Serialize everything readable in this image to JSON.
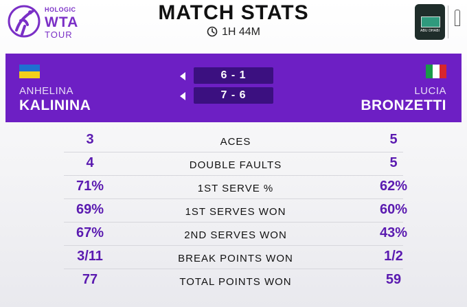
{
  "branding": {
    "sponsor": "HOLOGIC",
    "tour_line1": "WTA",
    "tour_line2": "TOUR",
    "accent_color": "#6d1fc4"
  },
  "header": {
    "title": "MATCH STATS",
    "duration": "1H 44M",
    "clock_icon": "clock-icon"
  },
  "players": {
    "left": {
      "first": "ANHELINA",
      "last": "KALININA",
      "flag": "ukraine-flag-icon"
    },
    "right": {
      "first": "LUCIA",
      "last": "BRONZETTI",
      "flag": "italy-flag-icon"
    }
  },
  "sets": [
    {
      "score": "6 - 1"
    },
    {
      "score": "7 - 6"
    }
  ],
  "stats": [
    {
      "label": "ACES",
      "left": "3",
      "right": "5"
    },
    {
      "label": "DOUBLE FAULTS",
      "left": "4",
      "right": "5"
    },
    {
      "label": "1ST SERVE %",
      "left": "71%",
      "right": "62%"
    },
    {
      "label": "1ST SERVES WON",
      "left": "69%",
      "right": "60%"
    },
    {
      "label": "2ND SERVES WON",
      "left": "67%",
      "right": "43%"
    },
    {
      "label": "BREAK POINTS WON",
      "left": "3/11",
      "right": "1/2"
    },
    {
      "label": "TOTAL POINTS WON",
      "left": "77",
      "right": "59"
    }
  ]
}
